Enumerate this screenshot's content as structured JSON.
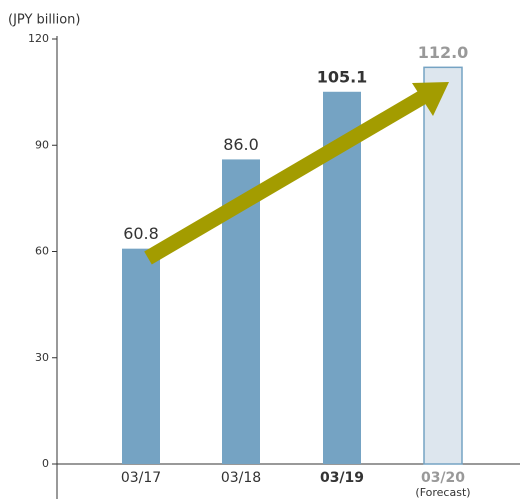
{
  "chart_data": {
    "type": "bar",
    "y_axis_label": "(JPY billion)",
    "categories": [
      "03/17",
      "03/18",
      "03/19",
      "03/20"
    ],
    "values": [
      60.8,
      86.0,
      105.1,
      112.0
    ],
    "value_labels": [
      "60.8",
      "86.0",
      "105.1",
      "112.0"
    ],
    "color": "#75a3c3",
    "forecast_color": "#dde6ee",
    "forecast_label_color": "#999999",
    "highlight": "03/19",
    "forecast": "03/20",
    "annotation": "(Forecast)",
    "ylim": [
      0,
      120
    ],
    "yticks": [
      0,
      30,
      60,
      90,
      120
    ],
    "grid": false
  }
}
